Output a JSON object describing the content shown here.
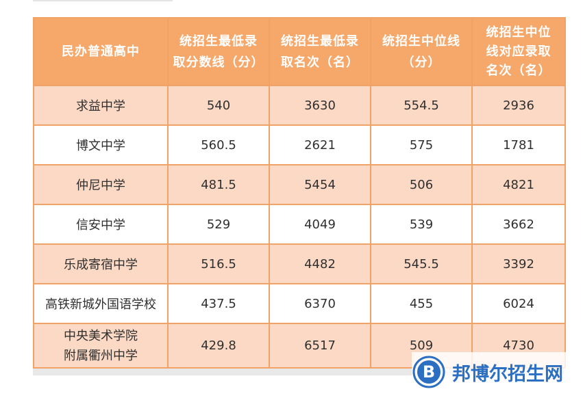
{
  "table": {
    "headers": [
      "民办普通高中",
      "统招生最低录\n取分数线（分）",
      "统招生最低录\n取名次（名）",
      "统招生中位线\n（分）",
      "统招生中位\n线对应录取\n名次（名）"
    ],
    "rows": [
      [
        "求益中学",
        "540",
        "3630",
        "554.5",
        "2936"
      ],
      [
        "博文中学",
        "560.5",
        "2621",
        "575",
        "1781"
      ],
      [
        "仲尼中学",
        "481.5",
        "5454",
        "506",
        "4821"
      ],
      [
        "信安中学",
        "529",
        "4049",
        "539",
        "3662"
      ],
      [
        "乐成寄宿中学",
        "516.5",
        "4482",
        "545.5",
        "3392"
      ],
      [
        "高铁新城外国语学校",
        "437.5",
        "6370",
        "455",
        "6024"
      ],
      [
        "中央美术学院\n附属衢州中学",
        "429.8",
        "6517",
        "509",
        "4730"
      ]
    ]
  },
  "watermark": {
    "logo_letter": "B",
    "text": "邦博尔招生网",
    "color": "#2a6fc1"
  },
  "colors": {
    "header_bg": "#f6a86b",
    "row_odd": "#fbd9c5",
    "row_even": "#ffffff",
    "border": "#f1a267"
  }
}
